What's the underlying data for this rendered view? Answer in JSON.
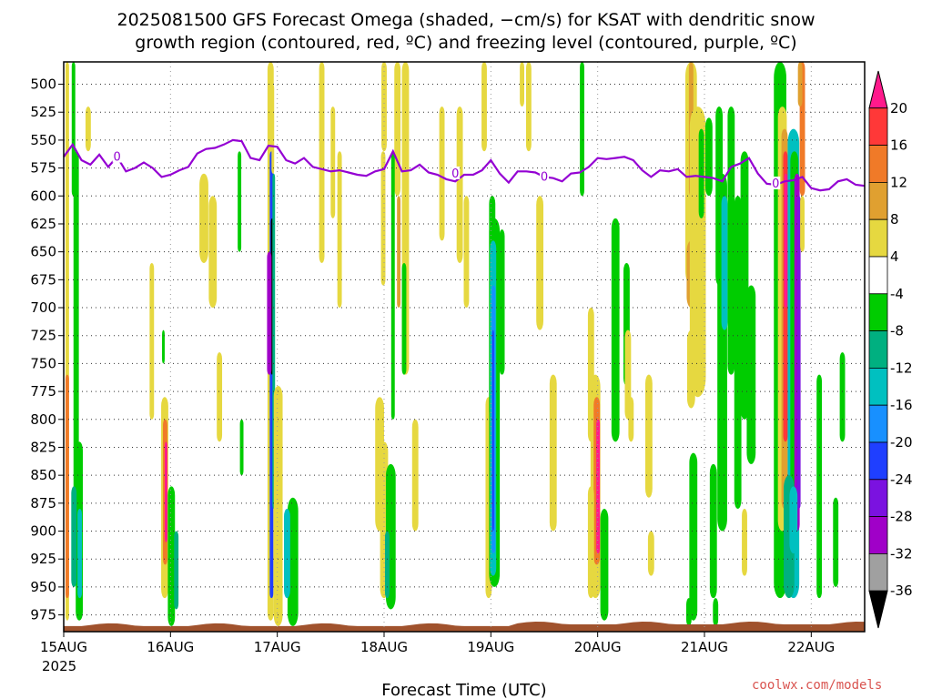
{
  "chart_data": {
    "type": "heatmap",
    "title_line1": "2025081500 GFS Forecast Omega (shaded, −cm/s) for KSAT with dendritic snow",
    "title_line2": "growth region (contoured, red, ºC) and freezing level (contoured, purple, ºC)",
    "xlabel": "Forecast Time (UTC)",
    "ylabel": "",
    "credit": "coolwx.com/models",
    "year_label": "2025",
    "x_ticks": [
      "15AUG",
      "16AUG",
      "17AUG",
      "18AUG",
      "19AUG",
      "20AUG",
      "21AUG",
      "22AUG"
    ],
    "y_ticks": [
      "500",
      "525",
      "550",
      "575",
      "600",
      "625",
      "650",
      "675",
      "700",
      "725",
      "750",
      "775",
      "800",
      "825",
      "850",
      "875",
      "900",
      "925",
      "950",
      "975"
    ],
    "y_range_hpa": [
      480,
      990
    ],
    "x_range_hours": [
      0,
      180
    ],
    "grid": "dotted",
    "colorbar": {
      "labels": [
        "20",
        "16",
        "12",
        "8",
        "4",
        "-4",
        "-8",
        "-12",
        "-16",
        "-20",
        "-24",
        "-28",
        "-32",
        "-36"
      ],
      "colors": [
        "#ff1a8c",
        "#ff3838",
        "#f07a28",
        "#e0a030",
        "#e6d840",
        "#ffffff",
        "#00cc00",
        "#00b080",
        "#00c0c0",
        "#1890ff",
        "#1f3fff",
        "#7b12e0",
        "#a000c8",
        "#a0a0a0",
        "#000000"
      ]
    },
    "freezing_level_series": {
      "x_hours": [
        0,
        2,
        4,
        6,
        8,
        10,
        12,
        14,
        16,
        18,
        20,
        22,
        24,
        26,
        28,
        30,
        32,
        34,
        36,
        38,
        40,
        42,
        44,
        46,
        48,
        50,
        52,
        54,
        56,
        58,
        60,
        62,
        64,
        66,
        68,
        70,
        72,
        74,
        76,
        78,
        80,
        82,
        84,
        86,
        88,
        90,
        92,
        94,
        96,
        98,
        100,
        102,
        104,
        106,
        108,
        110,
        112,
        114,
        116,
        118,
        120,
        122,
        124,
        126,
        128,
        130,
        132,
        134,
        136,
        138,
        140,
        142,
        144,
        146,
        148,
        150,
        152,
        154,
        156,
        158,
        160,
        162,
        164,
        166,
        168,
        170,
        172,
        174,
        176,
        178,
        180
      ],
      "p_hpa": [
        565,
        554,
        568,
        572,
        563,
        574,
        565,
        578,
        575,
        570,
        575,
        583,
        581,
        577,
        574,
        562,
        558,
        557,
        554,
        550,
        551,
        566,
        568,
        555,
        556,
        568,
        571,
        566,
        574,
        576,
        578,
        577,
        579,
        581,
        582,
        578,
        576,
        560,
        578,
        577,
        572,
        579,
        581,
        585,
        587,
        581,
        581,
        577,
        568,
        580,
        588,
        578,
        578,
        579,
        583,
        584,
        587,
        580,
        579,
        574,
        566,
        567,
        566,
        565,
        568,
        577,
        583,
        577,
        578,
        576,
        583,
        582,
        583,
        584,
        587,
        574,
        571,
        566,
        580,
        589,
        590,
        587,
        586,
        583,
        593,
        595,
        594,
        587,
        585,
        590,
        591
      ],
      "contour_label": "0"
    },
    "surface_color": "#a0522d"
  }
}
